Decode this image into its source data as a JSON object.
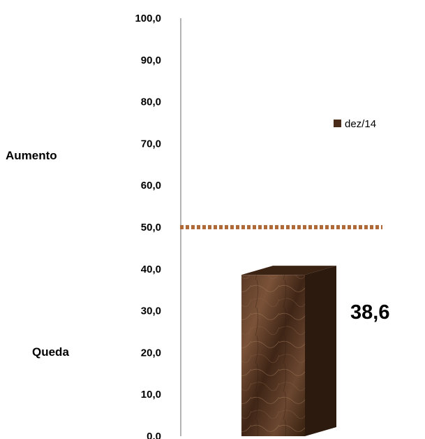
{
  "chart_data": {
    "type": "bar",
    "categories": [
      "dez/14"
    ],
    "series": [
      {
        "name": "dez/14",
        "values": [
          38.6
        ],
        "color": "#4a2a18"
      }
    ],
    "data_labels": [
      "38,6"
    ],
    "ylim": [
      0,
      100
    ],
    "y_ticks": [
      {
        "value": 100,
        "label": "100,0"
      },
      {
        "value": 90,
        "label": "90,0"
      },
      {
        "value": 80,
        "label": "80,0"
      },
      {
        "value": 70,
        "label": "70,0"
      },
      {
        "value": 60,
        "label": "60,0"
      },
      {
        "value": 50,
        "label": "50,0"
      },
      {
        "value": 40,
        "label": "40,0"
      },
      {
        "value": 30,
        "label": "30,0"
      },
      {
        "value": 20,
        "label": "20,0"
      },
      {
        "value": 10,
        "label": "10,0"
      },
      {
        "value": 0,
        "label": "0.0"
      }
    ],
    "reference_line": {
      "value": 50,
      "style": "dotted",
      "color": "#b06a3a"
    },
    "side_labels": {
      "upper": "Aumento",
      "lower": "Queda"
    },
    "legend": {
      "position": "right",
      "label": "dez/14"
    },
    "grid": false,
    "bar_style": "3d"
  }
}
